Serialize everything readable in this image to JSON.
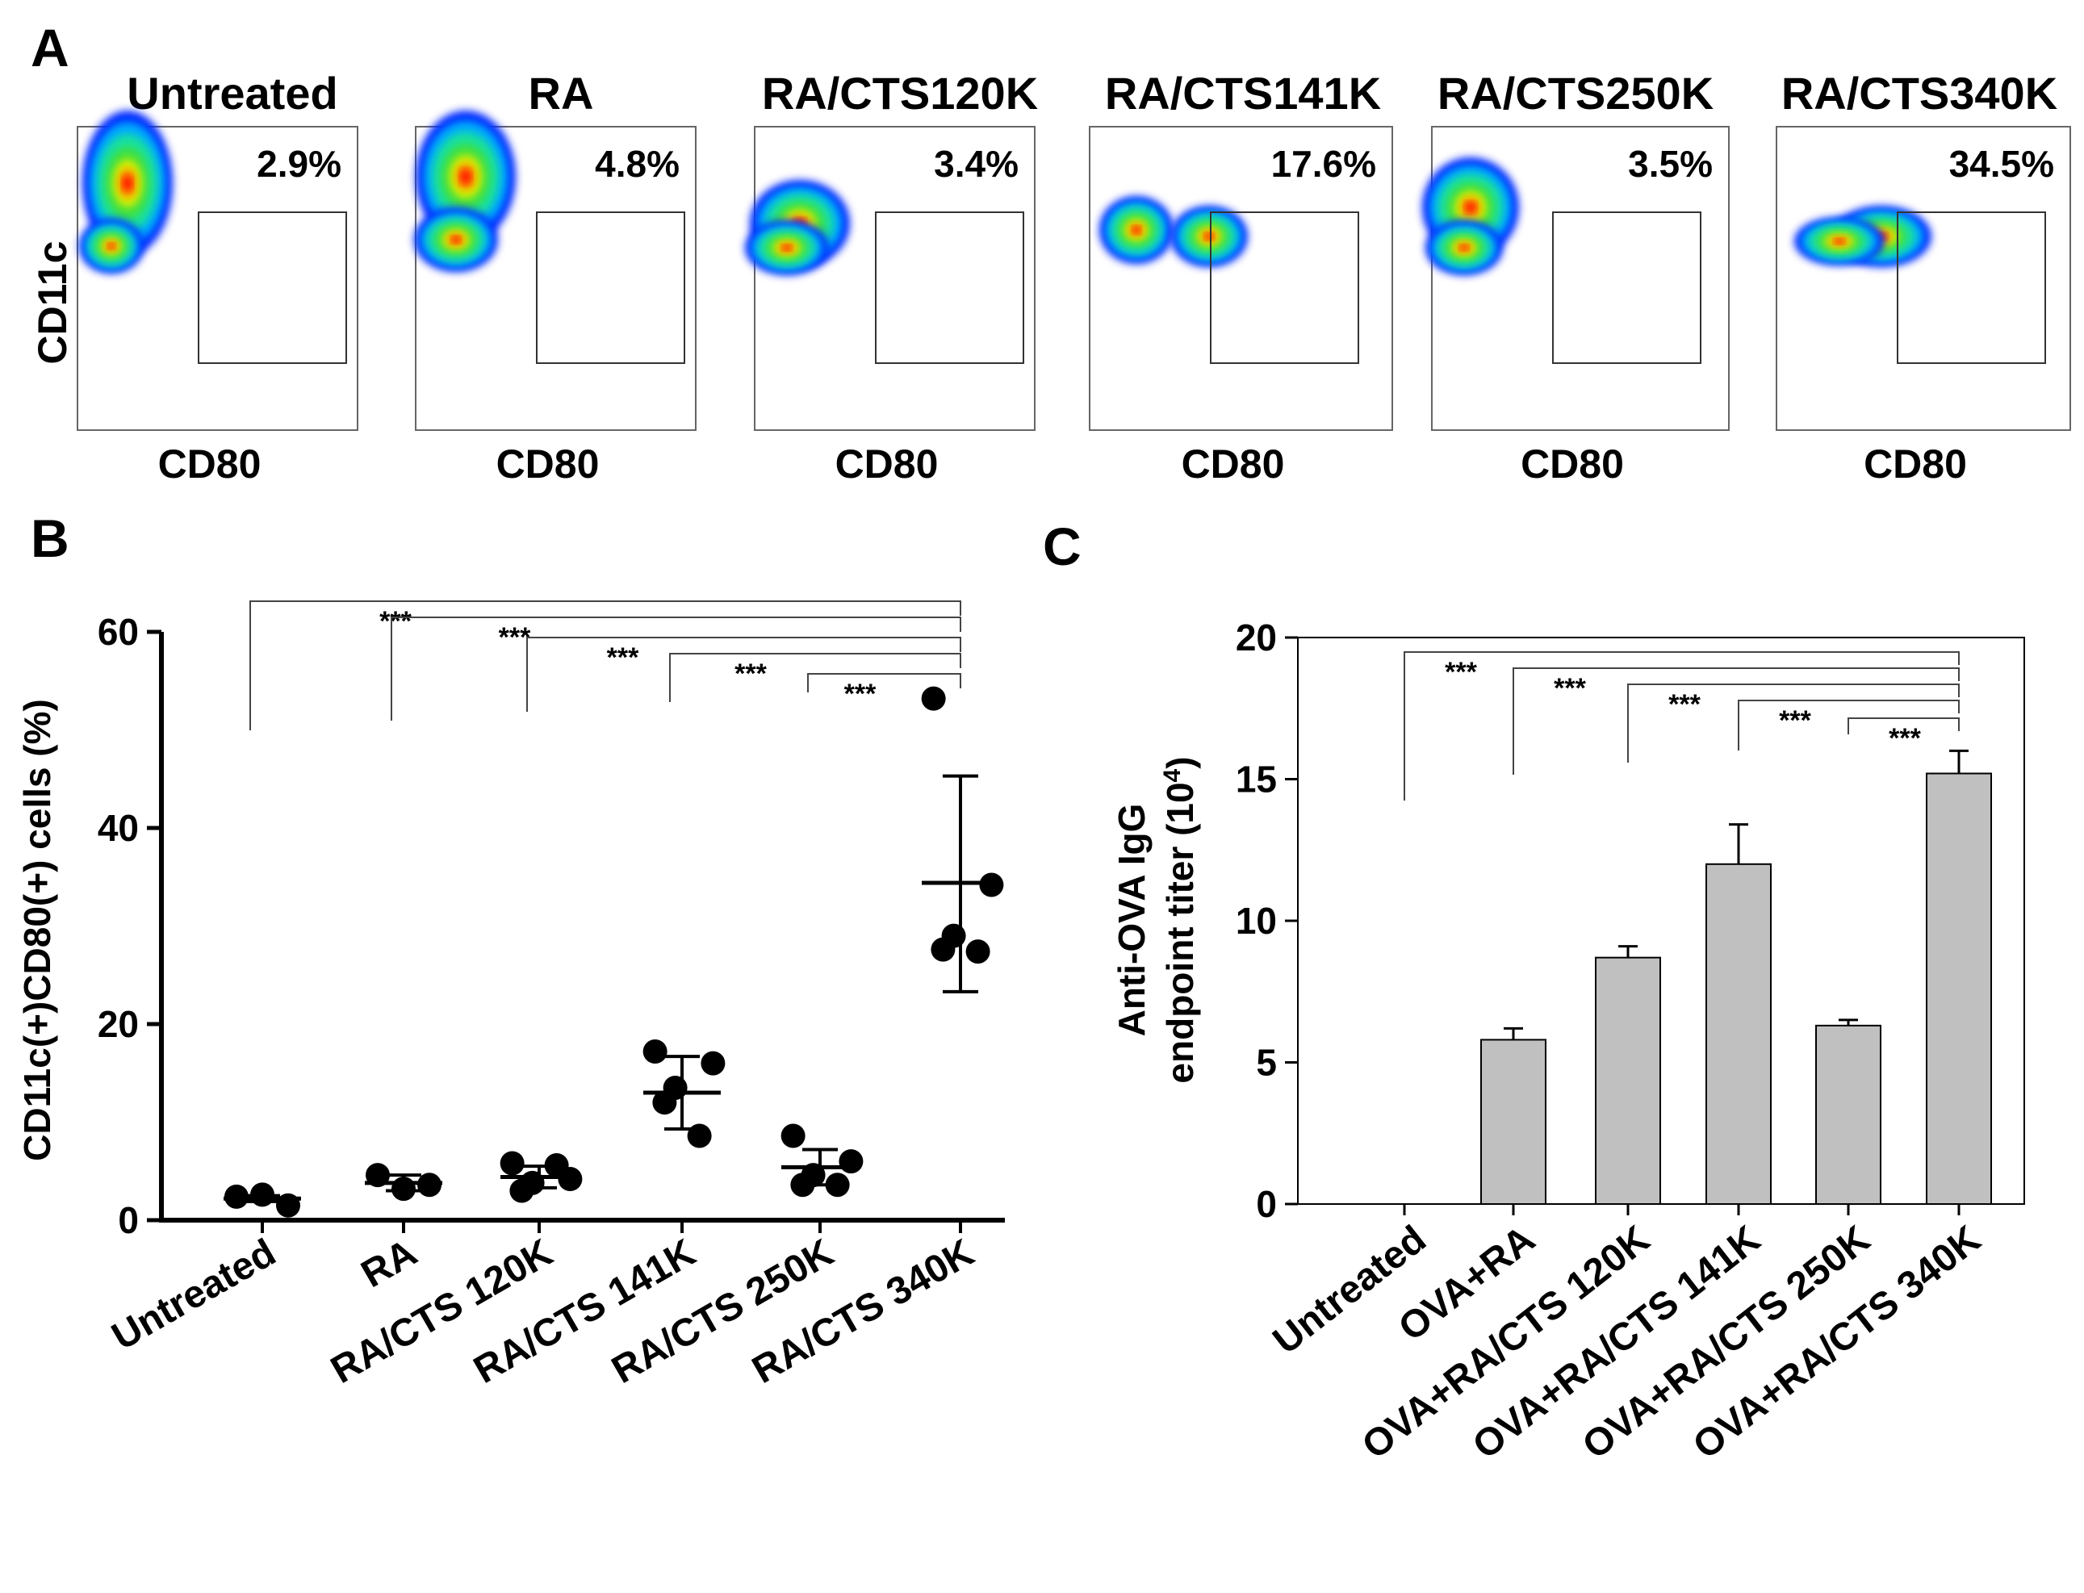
{
  "panel_letters": {
    "a": "A",
    "b": "B",
    "c": "C"
  },
  "flow": {
    "x_label": "CD80",
    "y_label": "CD11c",
    "panels": [
      {
        "title": "Untreated",
        "percent": "2.9%"
      },
      {
        "title": "RA",
        "percent": "4.8%"
      },
      {
        "title": "RA/CTS120K",
        "percent": "3.4%"
      },
      {
        "title": "RA/CTS141K",
        "percent": "17.6%"
      },
      {
        "title": "RA/CTS250K",
        "percent": "3.5%"
      },
      {
        "title": "RA/CTS340K",
        "percent": "34.5%"
      }
    ]
  },
  "chart_data": [
    {
      "type": "scatter",
      "panel": "B",
      "title": "",
      "xlabel": "",
      "ylabel": "CD11c(+)CD80(+) cells (%)",
      "ylim": [
        0,
        60
      ],
      "yticks": [
        0,
        20,
        40,
        60
      ],
      "categories": [
        "Untreated",
        "RA",
        "RA/CTS 120K",
        "RA/CTS 141K",
        "RA/CTS 250K",
        "RA/CTS 340K"
      ],
      "points": [
        [
          2.4,
          2.6,
          1.5
        ],
        [
          4.6,
          3.2,
          3.6
        ],
        [
          5.8,
          4.2,
          3.8,
          3.0,
          5.6
        ],
        [
          17.2,
          16.0,
          13.5,
          12.0,
          8.6
        ],
        [
          8.6,
          6.0,
          4.6,
          3.6,
          3.6
        ],
        [
          53.2,
          34.2,
          29.0,
          27.6,
          27.4
        ]
      ],
      "mean": [
        2.2,
        3.8,
        4.4,
        13.0,
        5.4,
        34.4
      ],
      "sd_low": [
        1.9,
        3.0,
        3.3,
        9.3,
        3.6,
        23.3
      ],
      "sd_high": [
        2.5,
        4.6,
        5.5,
        16.7,
        7.2,
        45.3
      ],
      "significance": {
        "label": "***",
        "comparisons": [
          {
            "from": "Untreated",
            "to": "RA/CTS 340K"
          },
          {
            "from": "RA",
            "to": "RA/CTS 340K"
          },
          {
            "from": "RA/CTS 120K",
            "to": "RA/CTS 340K"
          },
          {
            "from": "RA/CTS 141K",
            "to": "RA/CTS 340K"
          },
          {
            "from": "RA/CTS 250K",
            "to": "RA/CTS 340K"
          }
        ]
      }
    },
    {
      "type": "bar",
      "panel": "C",
      "title": "",
      "xlabel": "",
      "ylabel": "Anti-OVA IgG",
      "ylabel_line2": "endpoint titer (10",
      "ylabel_sup": "4",
      "ylabel_close": ")",
      "ylim": [
        0,
        20
      ],
      "yticks": [
        0,
        5,
        10,
        15,
        20
      ],
      "categories": [
        "Untreated",
        "OVA+RA",
        "OVA+RA/CTS 120K",
        "OVA+RA/CTS 141K",
        "OVA+RA/CTS 250K",
        "OVA+RA/CTS 340K"
      ],
      "values": [
        0,
        5.8,
        8.7,
        12.0,
        6.3,
        15.2
      ],
      "errors": [
        0,
        0.4,
        0.4,
        1.4,
        0.2,
        0.8
      ],
      "bar_color": "#c0c0c0",
      "significance": {
        "label": "***",
        "comparisons": [
          {
            "from": "Untreated",
            "to": "OVA+RA/CTS 340K"
          },
          {
            "from": "OVA+RA",
            "to": "OVA+RA/CTS 340K"
          },
          {
            "from": "OVA+RA/CTS 120K",
            "to": "OVA+RA/CTS 340K"
          },
          {
            "from": "OVA+RA/CTS 141K",
            "to": "OVA+RA/CTS 340K"
          },
          {
            "from": "OVA+RA/CTS 250K",
            "to": "OVA+RA/CTS 340K"
          }
        ]
      }
    }
  ]
}
